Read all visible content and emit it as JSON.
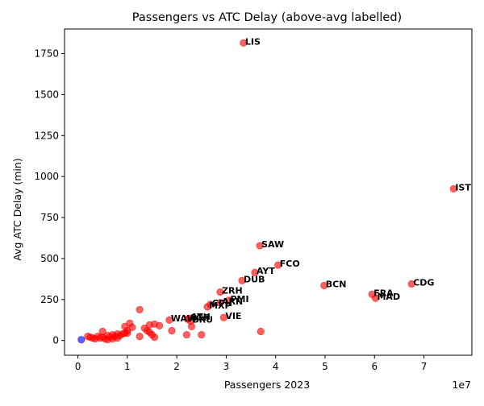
{
  "chart_data": {
    "type": "scatter",
    "title": "Passengers vs ATC Delay (above-avg labelled)",
    "xlabel": "Passengers 2023",
    "ylabel": "Avg ATC Delay (min)",
    "x_scale_label": "1e7",
    "xlim": [
      -2.7,
      79.7
    ],
    "ylim": [
      -90,
      1900
    ],
    "x_unit_note": "x values in units of 1e7 passengers (as printed by the axis multiplier)",
    "x_ticks": [
      0,
      1,
      2,
      3,
      4,
      5,
      6,
      7
    ],
    "x_tick_labels": [
      "0",
      "1",
      "2",
      "3",
      "4",
      "5",
      "6",
      "7"
    ],
    "y_ticks": [
      0,
      250,
      500,
      750,
      1000,
      1250,
      1500,
      1750
    ],
    "y_tick_labels": [
      "0",
      "250",
      "500",
      "750",
      "1000",
      "1250",
      "1500",
      "1750"
    ],
    "colors": {
      "point": "#ff0000",
      "highlight": "#0000ff",
      "axis": "#000000"
    },
    "series": [
      {
        "points": [
          {
            "x": 3.35,
            "y": 1815,
            "label": "LIS"
          },
          {
            "x": 7.6,
            "y": 925,
            "label": "IST"
          },
          {
            "x": 3.68,
            "y": 578,
            "label": "SAW"
          },
          {
            "x": 4.05,
            "y": 460,
            "label": "FCO"
          },
          {
            "x": 3.58,
            "y": 415,
            "label": "AYT"
          },
          {
            "x": 3.32,
            "y": 365,
            "label": "DUB"
          },
          {
            "x": 6.75,
            "y": 345,
            "label": "CDG"
          },
          {
            "x": 4.98,
            "y": 335,
            "label": "BCN"
          },
          {
            "x": 2.88,
            "y": 295,
            "label": "ZRH"
          },
          {
            "x": 5.95,
            "y": 282,
            "label": "FRA"
          },
          {
            "x": 6.02,
            "y": 258,
            "label": "MAD"
          },
          {
            "x": 3.05,
            "y": 245,
            "label": "PMI"
          },
          {
            "x": 2.88,
            "y": 230,
            "label": "ARN"
          },
          {
            "x": 2.68,
            "y": 220,
            "label": "CPH"
          },
          {
            "x": 2.62,
            "y": 205,
            "label": "MXP"
          },
          {
            "x": 2.95,
            "y": 140,
            "label": "VIE"
          },
          {
            "x": 2.25,
            "y": 135,
            "label": "ATH"
          },
          {
            "x": 2.22,
            "y": 130,
            "label": "AGP"
          },
          {
            "x": 1.85,
            "y": 125,
            "label": "WAW"
          },
          {
            "x": 2.28,
            "y": 118,
            "label": "BRU"
          },
          {
            "x": 3.7,
            "y": 55
          },
          {
            "x": 2.5,
            "y": 35
          },
          {
            "x": 2.2,
            "y": 35
          },
          {
            "x": 2.3,
            "y": 85
          },
          {
            "x": 1.9,
            "y": 60
          },
          {
            "x": 1.25,
            "y": 188
          },
          {
            "x": 1.65,
            "y": 90
          },
          {
            "x": 1.55,
            "y": 100
          },
          {
            "x": 1.45,
            "y": 95
          },
          {
            "x": 1.4,
            "y": 60
          },
          {
            "x": 1.45,
            "y": 50
          },
          {
            "x": 1.35,
            "y": 75
          },
          {
            "x": 1.5,
            "y": 35
          },
          {
            "x": 1.55,
            "y": 20
          },
          {
            "x": 1.25,
            "y": 25
          },
          {
            "x": 1.1,
            "y": 80
          },
          {
            "x": 1.05,
            "y": 105
          },
          {
            "x": 0.95,
            "y": 85
          },
          {
            "x": 1.0,
            "y": 60
          },
          {
            "x": 0.95,
            "y": 45
          },
          {
            "x": 0.9,
            "y": 40
          },
          {
            "x": 0.85,
            "y": 30
          },
          {
            "x": 0.8,
            "y": 40
          },
          {
            "x": 0.75,
            "y": 25
          },
          {
            "x": 0.7,
            "y": 35
          },
          {
            "x": 0.65,
            "y": 20
          },
          {
            "x": 0.6,
            "y": 30
          },
          {
            "x": 0.55,
            "y": 10
          },
          {
            "x": 0.5,
            "y": 55
          },
          {
            "x": 0.5,
            "y": 20
          },
          {
            "x": 0.45,
            "y": 15
          },
          {
            "x": 0.4,
            "y": 25
          },
          {
            "x": 0.35,
            "y": 10
          },
          {
            "x": 0.3,
            "y": 15
          },
          {
            "x": 0.25,
            "y": 20
          },
          {
            "x": 0.2,
            "y": 25
          },
          {
            "x": 0.6,
            "y": 5
          },
          {
            "x": 0.7,
            "y": 10
          },
          {
            "x": 0.8,
            "y": 15
          },
          {
            "x": 1.0,
            "y": 45
          }
        ]
      },
      {
        "color_key": "highlight",
        "points": [
          {
            "x": 0.07,
            "y": 5
          }
        ]
      }
    ]
  }
}
